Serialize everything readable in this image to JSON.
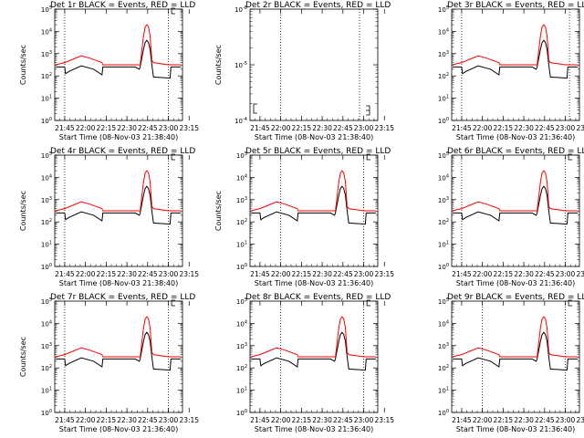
{
  "chart_data": [
    {
      "type": "line",
      "title": "Det 1r BLACK = Events, RED = LLD",
      "xlabel": "Start Time (08-Nov-03 21:38:40)",
      "ylabel": "Counts/sec",
      "yscale": "log",
      "ylim_exp": [
        0,
        5
      ],
      "xticks": [
        "21:45",
        "22:00",
        "22:15",
        "22:30",
        "22:45",
        "23:00",
        "23:15"
      ],
      "series": [
        {
          "color": "#000000",
          "x": [
            21.64,
            21.75,
            21.76,
            21.8,
            21.95,
            22.1,
            22.2,
            22.21,
            22.3,
            22.5,
            22.6,
            22.65,
            22.66,
            22.7,
            22.72,
            22.74,
            22.76,
            22.78,
            22.8,
            22.82,
            23.02,
            23.03,
            23.15
          ],
          "y": [
            2.4,
            2.4,
            2.1,
            2.2,
            2.45,
            2.3,
            2.05,
            2.4,
            2.4,
            2.4,
            2.4,
            2.3,
            2.4,
            3.2,
            3.5,
            3.6,
            3.5,
            3.2,
            2.5,
            1.95,
            1.9,
            2.4,
            2.4
          ]
        },
        {
          "color": "#ff0000",
          "x": [
            21.64,
            21.75,
            21.85,
            21.95,
            22.05,
            22.2,
            22.21,
            22.5,
            22.6,
            22.66,
            22.7,
            22.72,
            22.74,
            22.76,
            22.78,
            22.8,
            22.82,
            23.0,
            23.15
          ],
          "y": [
            2.5,
            2.6,
            2.75,
            2.9,
            2.8,
            2.6,
            2.5,
            2.5,
            2.5,
            2.5,
            3.8,
            4.2,
            4.3,
            4.2,
            3.8,
            2.7,
            2.6,
            2.5,
            2.5
          ]
        }
      ],
      "vlines_x": [
        21.75,
        23.0
      ],
      "marker_x": 23.05,
      "marker_y": 5
    },
    {
      "type": "line",
      "title": "Det 2r BLACK = Events, RED = LLD",
      "xlabel": "Start Time (08-Nov-03 21:38:40)",
      "ylabel": "Counts/sec",
      "yscale": "log",
      "ylim_exp": [
        -4,
        -6
      ],
      "xticks": [
        "21:45",
        "22:00",
        "22:15",
        "22:30",
        "22:45",
        "23:00",
        "23:15"
      ],
      "series": [],
      "vlines_x": [
        22.0,
        22.95
      ]
    },
    {
      "type": "line",
      "title": "Det 3r BLACK = Events, RED = LLD",
      "xlabel": "Start Time (08-Nov-03 21:36:40)",
      "ylabel": "",
      "yscale": "log",
      "ylim_exp": [
        0,
        5
      ],
      "xticks": [
        "21:45",
        "22:00",
        "22:15",
        "22:30",
        "22:45",
        "23:00",
        "23:15"
      ],
      "series": [
        {
          "color": "#000000",
          "x": [
            21.64,
            21.75,
            21.76,
            21.8,
            21.95,
            22.1,
            22.2,
            22.21,
            22.3,
            22.5,
            22.6,
            22.65,
            22.66,
            22.7,
            22.72,
            22.74,
            22.76,
            22.78,
            22.8,
            22.82,
            23.02,
            23.03,
            23.15
          ],
          "y": [
            2.4,
            2.4,
            2.1,
            2.2,
            2.45,
            2.3,
            2.05,
            2.4,
            2.4,
            2.4,
            2.4,
            2.3,
            2.4,
            3.2,
            3.5,
            3.6,
            3.5,
            3.2,
            2.5,
            1.95,
            1.9,
            2.4,
            2.4
          ]
        },
        {
          "color": "#ff0000",
          "x": [
            21.64,
            21.75,
            21.85,
            21.95,
            22.05,
            22.2,
            22.21,
            22.5,
            22.6,
            22.66,
            22.7,
            22.72,
            22.74,
            22.76,
            22.78,
            22.8,
            22.82,
            23.0,
            23.15
          ],
          "y": [
            2.5,
            2.6,
            2.75,
            2.9,
            2.8,
            2.6,
            2.5,
            2.5,
            2.5,
            2.5,
            3.8,
            4.2,
            4.3,
            4.2,
            3.8,
            2.7,
            2.6,
            2.5,
            2.5
          ]
        }
      ],
      "vlines_x": [
        21.75,
        23.05
      ]
    },
    {
      "type": "line",
      "title": "Det 4r BLACK = Events, RED = LLD",
      "xlabel": "Start Time (08-Nov-03 21:38:40)",
      "ylabel": "Counts/sec",
      "yscale": "log",
      "ylim_exp": [
        0,
        5
      ],
      "xticks": [
        "21:45",
        "22:00",
        "22:15",
        "22:30",
        "22:45",
        "23:00",
        "23:15"
      ],
      "series": [
        {
          "color": "#000000",
          "x": [
            21.64,
            21.75,
            21.76,
            21.8,
            21.95,
            22.1,
            22.2,
            22.21,
            22.3,
            22.5,
            22.6,
            22.65,
            22.66,
            22.7,
            22.72,
            22.74,
            22.76,
            22.78,
            22.8,
            22.82,
            23.02,
            23.03,
            23.15
          ],
          "y": [
            2.4,
            2.4,
            2.1,
            2.2,
            2.45,
            2.3,
            2.05,
            2.4,
            2.4,
            2.4,
            2.4,
            2.3,
            2.4,
            3.2,
            3.5,
            3.6,
            3.5,
            3.2,
            2.5,
            1.95,
            1.9,
            2.4,
            2.4
          ]
        },
        {
          "color": "#ff0000",
          "x": [
            21.64,
            21.75,
            21.85,
            21.95,
            22.05,
            22.2,
            22.21,
            22.5,
            22.6,
            22.66,
            22.7,
            22.72,
            22.74,
            22.76,
            22.78,
            22.8,
            22.82,
            23.0,
            23.15
          ],
          "y": [
            2.5,
            2.6,
            2.75,
            2.9,
            2.8,
            2.6,
            2.5,
            2.5,
            2.5,
            2.5,
            3.8,
            4.2,
            4.3,
            4.2,
            3.8,
            2.7,
            2.6,
            2.5,
            2.5
          ]
        }
      ],
      "vlines_x": [
        21.75,
        23.0
      ],
      "marker_x": 23.05,
      "marker_y": 5
    },
    {
      "type": "line",
      "title": "Det 5r BLACK = Events, RED = LLD",
      "xlabel": "Start Time (08-Nov-03 21:36:40)",
      "ylabel": "Counts/sec",
      "yscale": "log",
      "ylim_exp": [
        0,
        5
      ],
      "xticks": [
        "21:45",
        "22:00",
        "22:15",
        "22:30",
        "22:45",
        "23:00",
        "23:15"
      ],
      "series": [
        {
          "color": "#000000",
          "x": [
            21.64,
            21.75,
            21.76,
            21.8,
            21.95,
            22.1,
            22.2,
            22.21,
            22.3,
            22.5,
            22.6,
            22.65,
            22.66,
            22.7,
            22.72,
            22.74,
            22.76,
            22.78,
            22.8,
            22.82,
            23.02,
            23.03,
            23.15
          ],
          "y": [
            2.4,
            2.4,
            2.1,
            2.2,
            2.45,
            2.3,
            2.05,
            2.4,
            2.4,
            2.4,
            2.4,
            2.3,
            2.4,
            3.2,
            3.5,
            3.6,
            3.5,
            3.2,
            2.5,
            1.95,
            1.9,
            2.4,
            2.4
          ]
        },
        {
          "color": "#ff0000",
          "x": [
            21.64,
            21.75,
            21.85,
            21.95,
            22.05,
            22.2,
            22.21,
            22.5,
            22.6,
            22.66,
            22.7,
            22.72,
            22.74,
            22.76,
            22.78,
            22.8,
            22.82,
            23.0,
            23.15
          ],
          "y": [
            2.5,
            2.6,
            2.75,
            2.9,
            2.8,
            2.6,
            2.5,
            2.5,
            2.5,
            2.5,
            3.8,
            4.2,
            4.3,
            4.2,
            3.8,
            2.7,
            2.6,
            2.5,
            2.5
          ]
        }
      ],
      "vlines_x": [
        22.0,
        23.0
      ],
      "marker_x": 23.05,
      "marker_y": 5
    },
    {
      "type": "line",
      "title": "Det 6r BLACK = Events, RED = LLD",
      "xlabel": "Start Time (08-Nov-03 21:36:40)",
      "ylabel": "",
      "yscale": "log",
      "ylim_exp": [
        0,
        5
      ],
      "xticks": [
        "21:45",
        "22:00",
        "22:15",
        "22:30",
        "22:45",
        "23:00",
        "23:15"
      ],
      "series": [
        {
          "color": "#000000",
          "x": [
            21.64,
            21.75,
            21.76,
            21.8,
            21.95,
            22.1,
            22.2,
            22.21,
            22.3,
            22.5,
            22.6,
            22.65,
            22.66,
            22.7,
            22.72,
            22.74,
            22.76,
            22.78,
            22.8,
            22.82,
            23.02,
            23.03,
            23.15
          ],
          "y": [
            2.4,
            2.4,
            2.1,
            2.2,
            2.45,
            2.3,
            2.05,
            2.4,
            2.4,
            2.4,
            2.4,
            2.3,
            2.4,
            3.2,
            3.5,
            3.6,
            3.5,
            3.2,
            2.5,
            1.95,
            1.9,
            2.4,
            2.4
          ]
        },
        {
          "color": "#ff0000",
          "x": [
            21.64,
            21.75,
            21.85,
            21.95,
            22.05,
            22.2,
            22.21,
            22.5,
            22.6,
            22.66,
            22.7,
            22.72,
            22.74,
            22.76,
            22.78,
            22.8,
            22.82,
            23.0,
            23.15
          ],
          "y": [
            2.5,
            2.6,
            2.75,
            2.9,
            2.8,
            2.6,
            2.5,
            2.5,
            2.5,
            2.5,
            3.8,
            4.2,
            4.3,
            4.2,
            3.8,
            2.7,
            2.6,
            2.5,
            2.5
          ]
        }
      ],
      "vlines_x": [
        21.75,
        23.0
      ],
      "marker_x": 23.05,
      "marker_y": 5
    },
    {
      "type": "line",
      "title": "Det 7r BLACK = Events, RED = LLD",
      "xlabel": "Start Time (08-Nov-03 21:36:40)",
      "ylabel": "Counts/sec",
      "yscale": "log",
      "ylim_exp": [
        0,
        5
      ],
      "xticks": [
        "21:45",
        "22:00",
        "22:15",
        "22:30",
        "22:45",
        "23:00",
        "23:15"
      ],
      "series": [
        {
          "color": "#000000",
          "x": [
            21.64,
            21.75,
            21.76,
            21.8,
            21.95,
            22.1,
            22.2,
            22.21,
            22.3,
            22.5,
            22.6,
            22.65,
            22.66,
            22.7,
            22.72,
            22.74,
            22.76,
            22.78,
            22.8,
            22.82,
            23.02,
            23.03,
            23.15
          ],
          "y": [
            2.4,
            2.4,
            2.1,
            2.2,
            2.45,
            2.3,
            2.05,
            2.4,
            2.4,
            2.4,
            2.4,
            2.3,
            2.4,
            3.2,
            3.5,
            3.6,
            3.5,
            3.2,
            2.5,
            1.95,
            1.9,
            2.4,
            2.4
          ]
        },
        {
          "color": "#ff0000",
          "x": [
            21.64,
            21.75,
            21.85,
            21.95,
            22.05,
            22.2,
            22.21,
            22.5,
            22.6,
            22.66,
            22.7,
            22.72,
            22.74,
            22.76,
            22.78,
            22.8,
            22.82,
            23.0,
            23.15
          ],
          "y": [
            2.5,
            2.6,
            2.75,
            2.9,
            2.8,
            2.6,
            2.5,
            2.5,
            2.5,
            2.5,
            3.8,
            4.2,
            4.3,
            4.2,
            3.8,
            2.7,
            2.6,
            2.5,
            2.5
          ]
        }
      ],
      "vlines_x": [
        21.75,
        23.0
      ],
      "marker_x": 23.05,
      "marker_y": 5
    },
    {
      "type": "line",
      "title": "Det 8r BLACK = Events, RED = LLD",
      "xlabel": "Start Time (08-Nov-03 21:36:40)",
      "ylabel": "",
      "yscale": "log",
      "ylim_exp": [
        0,
        5
      ],
      "xticks": [
        "21:45",
        "22:00",
        "22:15",
        "22:30",
        "22:45",
        "23:00",
        "23:15"
      ],
      "series": [
        {
          "color": "#000000",
          "x": [
            21.64,
            21.75,
            21.76,
            21.8,
            21.95,
            22.1,
            22.2,
            22.21,
            22.3,
            22.5,
            22.6,
            22.65,
            22.66,
            22.7,
            22.72,
            22.74,
            22.76,
            22.78,
            22.8,
            22.82,
            23.02,
            23.03,
            23.15
          ],
          "y": [
            2.4,
            2.4,
            2.1,
            2.2,
            2.45,
            2.3,
            2.05,
            2.4,
            2.4,
            2.4,
            2.4,
            2.3,
            2.4,
            3.2,
            3.5,
            3.6,
            3.5,
            3.2,
            2.5,
            1.95,
            1.9,
            2.4,
            2.4
          ]
        },
        {
          "color": "#ff0000",
          "x": [
            21.64,
            21.75,
            21.85,
            21.95,
            22.05,
            22.2,
            22.21,
            22.5,
            22.6,
            22.66,
            22.7,
            22.72,
            22.74,
            22.76,
            22.78,
            22.8,
            22.82,
            23.0,
            23.15
          ],
          "y": [
            2.5,
            2.6,
            2.75,
            2.9,
            2.8,
            2.6,
            2.5,
            2.5,
            2.5,
            2.5,
            3.8,
            4.2,
            4.3,
            4.2,
            3.8,
            2.7,
            2.6,
            2.5,
            2.5
          ]
        }
      ],
      "vlines_x": [
        22.0,
        23.0
      ],
      "marker_x": 23.05,
      "marker_y": 5
    },
    {
      "type": "line",
      "title": "Det 9r BLACK = Events, RED = LLD",
      "xlabel": "Start Time (08-Nov-03 21:36:40)",
      "ylabel": "",
      "yscale": "log",
      "ylim_exp": [
        0,
        5
      ],
      "xticks": [
        "21:45",
        "22:00",
        "22:15",
        "22:30",
        "22:45",
        "23:00",
        "23:15"
      ],
      "series": [
        {
          "color": "#000000",
          "x": [
            21.64,
            21.75,
            21.76,
            21.8,
            21.95,
            22.1,
            22.2,
            22.21,
            22.3,
            22.5,
            22.6,
            22.65,
            22.66,
            22.7,
            22.72,
            22.74,
            22.76,
            22.78,
            22.8,
            22.82,
            23.02,
            23.03,
            23.15
          ],
          "y": [
            2.4,
            2.4,
            2.1,
            2.2,
            2.45,
            2.3,
            2.05,
            2.4,
            2.4,
            2.4,
            2.4,
            2.3,
            2.4,
            3.2,
            3.5,
            3.6,
            3.5,
            3.2,
            2.5,
            1.95,
            1.9,
            2.4,
            2.4
          ]
        },
        {
          "color": "#ff0000",
          "x": [
            21.64,
            21.75,
            21.85,
            21.95,
            22.05,
            22.2,
            22.21,
            22.5,
            22.6,
            22.66,
            22.7,
            22.72,
            22.74,
            22.76,
            22.78,
            22.8,
            22.82,
            23.0,
            23.15
          ],
          "y": [
            2.5,
            2.6,
            2.75,
            2.9,
            2.8,
            2.6,
            2.5,
            2.5,
            2.5,
            2.5,
            3.8,
            4.2,
            4.3,
            4.2,
            3.8,
            2.7,
            2.6,
            2.5,
            2.5
          ]
        }
      ],
      "vlines_x": [
        22.0,
        23.0
      ],
      "marker_x": 23.05,
      "marker_y": 5
    }
  ]
}
